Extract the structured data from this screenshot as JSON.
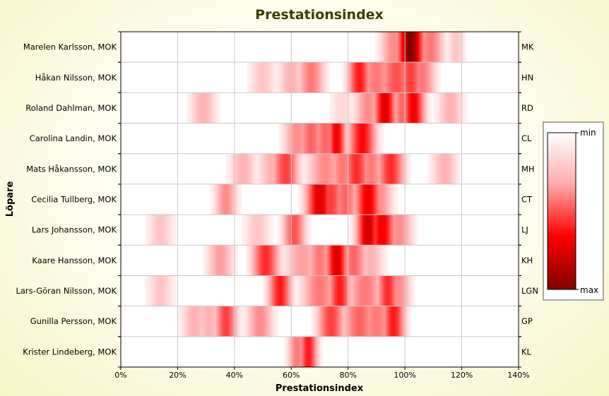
{
  "chart_data": {
    "type": "heatmap",
    "title": "Prestationsindex",
    "xlabel": "Prestationsindex",
    "ylabel": "Löpare",
    "xlim": [
      0,
      140
    ],
    "x_ticks": [
      "0%",
      "20%",
      "40%",
      "60%",
      "80%",
      "100%",
      "120%",
      "140%"
    ],
    "grid": true,
    "legend": {
      "position": "right",
      "min_label": "min",
      "max_label": "max"
    },
    "colors": {
      "low": "#ffffff",
      "mid": "#ff0000",
      "high": "#800000"
    },
    "rows": [
      {
        "name": "Marelen Karlsson, MOK",
        "code": "MK",
        "peaks": [
          [
            102,
            3,
            1.0
          ],
          [
            96,
            3,
            0.3
          ],
          [
            109,
            3,
            0.35
          ],
          [
            118,
            2,
            0.15
          ]
        ]
      },
      {
        "name": "Håkan Nilsson, MOK",
        "code": "HN",
        "peaks": [
          [
            50,
            3,
            0.15
          ],
          [
            60,
            3,
            0.2
          ],
          [
            67,
            3,
            0.35
          ],
          [
            84,
            2.5,
            0.6
          ],
          [
            90,
            4,
            0.35
          ],
          [
            97,
            4,
            0.45
          ],
          [
            102,
            3,
            0.5
          ],
          [
            106,
            3,
            0.35
          ]
        ]
      },
      {
        "name": "Roland Dahlman, MOK",
        "code": "RD",
        "peaks": [
          [
            29,
            3,
            0.2
          ],
          [
            78,
            3,
            0.1
          ],
          [
            87,
            3,
            0.3
          ],
          [
            93,
            2.5,
            0.75
          ],
          [
            99,
            2,
            0.4
          ],
          [
            103,
            2.5,
            0.7
          ],
          [
            116,
            3,
            0.2
          ]
        ]
      },
      {
        "name": "Carolina Landin, MOK",
        "code": "CL",
        "peaks": [
          [
            62,
            3,
            0.3
          ],
          [
            67,
            3,
            0.4
          ],
          [
            72,
            3,
            0.4
          ],
          [
            76,
            2,
            0.7
          ],
          [
            85,
            3,
            0.65
          ]
        ]
      },
      {
        "name": "Mats Håkansson, MOK",
        "code": "MH",
        "peaks": [
          [
            43,
            3,
            0.2
          ],
          [
            53,
            3,
            0.2
          ],
          [
            58,
            3,
            0.5
          ],
          [
            72,
            4,
            0.3
          ],
          [
            78,
            3,
            0.35
          ],
          [
            83,
            3,
            0.55
          ],
          [
            88,
            3,
            0.35
          ],
          [
            95,
            3,
            0.55
          ],
          [
            114,
            3,
            0.2
          ]
        ]
      },
      {
        "name": "Cecilia Tullberg, MOK",
        "code": "CT",
        "peaks": [
          [
            37,
            2.5,
            0.3
          ],
          [
            70,
            3,
            0.75
          ],
          [
            74,
            3,
            0.5
          ],
          [
            79,
            3,
            0.4
          ],
          [
            87,
            3,
            0.7
          ],
          [
            91,
            3,
            0.3
          ]
        ]
      },
      {
        "name": "Lars Johansson, MOK",
        "code": "LJ",
        "peaks": [
          [
            14,
            3,
            0.15
          ],
          [
            48,
            3,
            0.15
          ],
          [
            61,
            2.5,
            0.45
          ],
          [
            87,
            2.5,
            0.8
          ],
          [
            92,
            3,
            0.7
          ],
          [
            98,
            3,
            0.3
          ]
        ]
      },
      {
        "name": "Kaare Hansson, MOK",
        "code": "KH",
        "peaks": [
          [
            35,
            3,
            0.25
          ],
          [
            51,
            3,
            0.55
          ],
          [
            64,
            4,
            0.25
          ],
          [
            70,
            3,
            0.35
          ],
          [
            76,
            2.5,
            0.75
          ],
          [
            82,
            3,
            0.4
          ],
          [
            88,
            3,
            0.2
          ]
        ]
      },
      {
        "name": "Lars-Göran Nilsson, MOK",
        "code": "LGN",
        "peaks": [
          [
            14,
            3,
            0.15
          ],
          [
            56,
            2.5,
            0.6
          ],
          [
            70,
            4,
            0.35
          ],
          [
            77,
            2.5,
            0.6
          ],
          [
            86,
            4,
            0.35
          ],
          [
            94,
            2.5,
            0.55
          ],
          [
            98,
            2.5,
            0.3
          ]
        ]
      },
      {
        "name": "Gunilla Persson, MOK",
        "code": "GP",
        "peaks": [
          [
            26,
            3,
            0.2
          ],
          [
            31,
            3,
            0.2
          ],
          [
            37,
            2.5,
            0.5
          ],
          [
            49,
            3,
            0.3
          ],
          [
            74,
            3,
            0.5
          ],
          [
            84,
            4,
            0.4
          ],
          [
            90,
            4,
            0.35
          ],
          [
            96,
            2.5,
            0.6
          ]
        ]
      },
      {
        "name": "Krister Lindeberg, MOK",
        "code": "KL",
        "peaks": [
          [
            62,
            2,
            0.35
          ],
          [
            66,
            2,
            0.6
          ]
        ]
      }
    ]
  }
}
